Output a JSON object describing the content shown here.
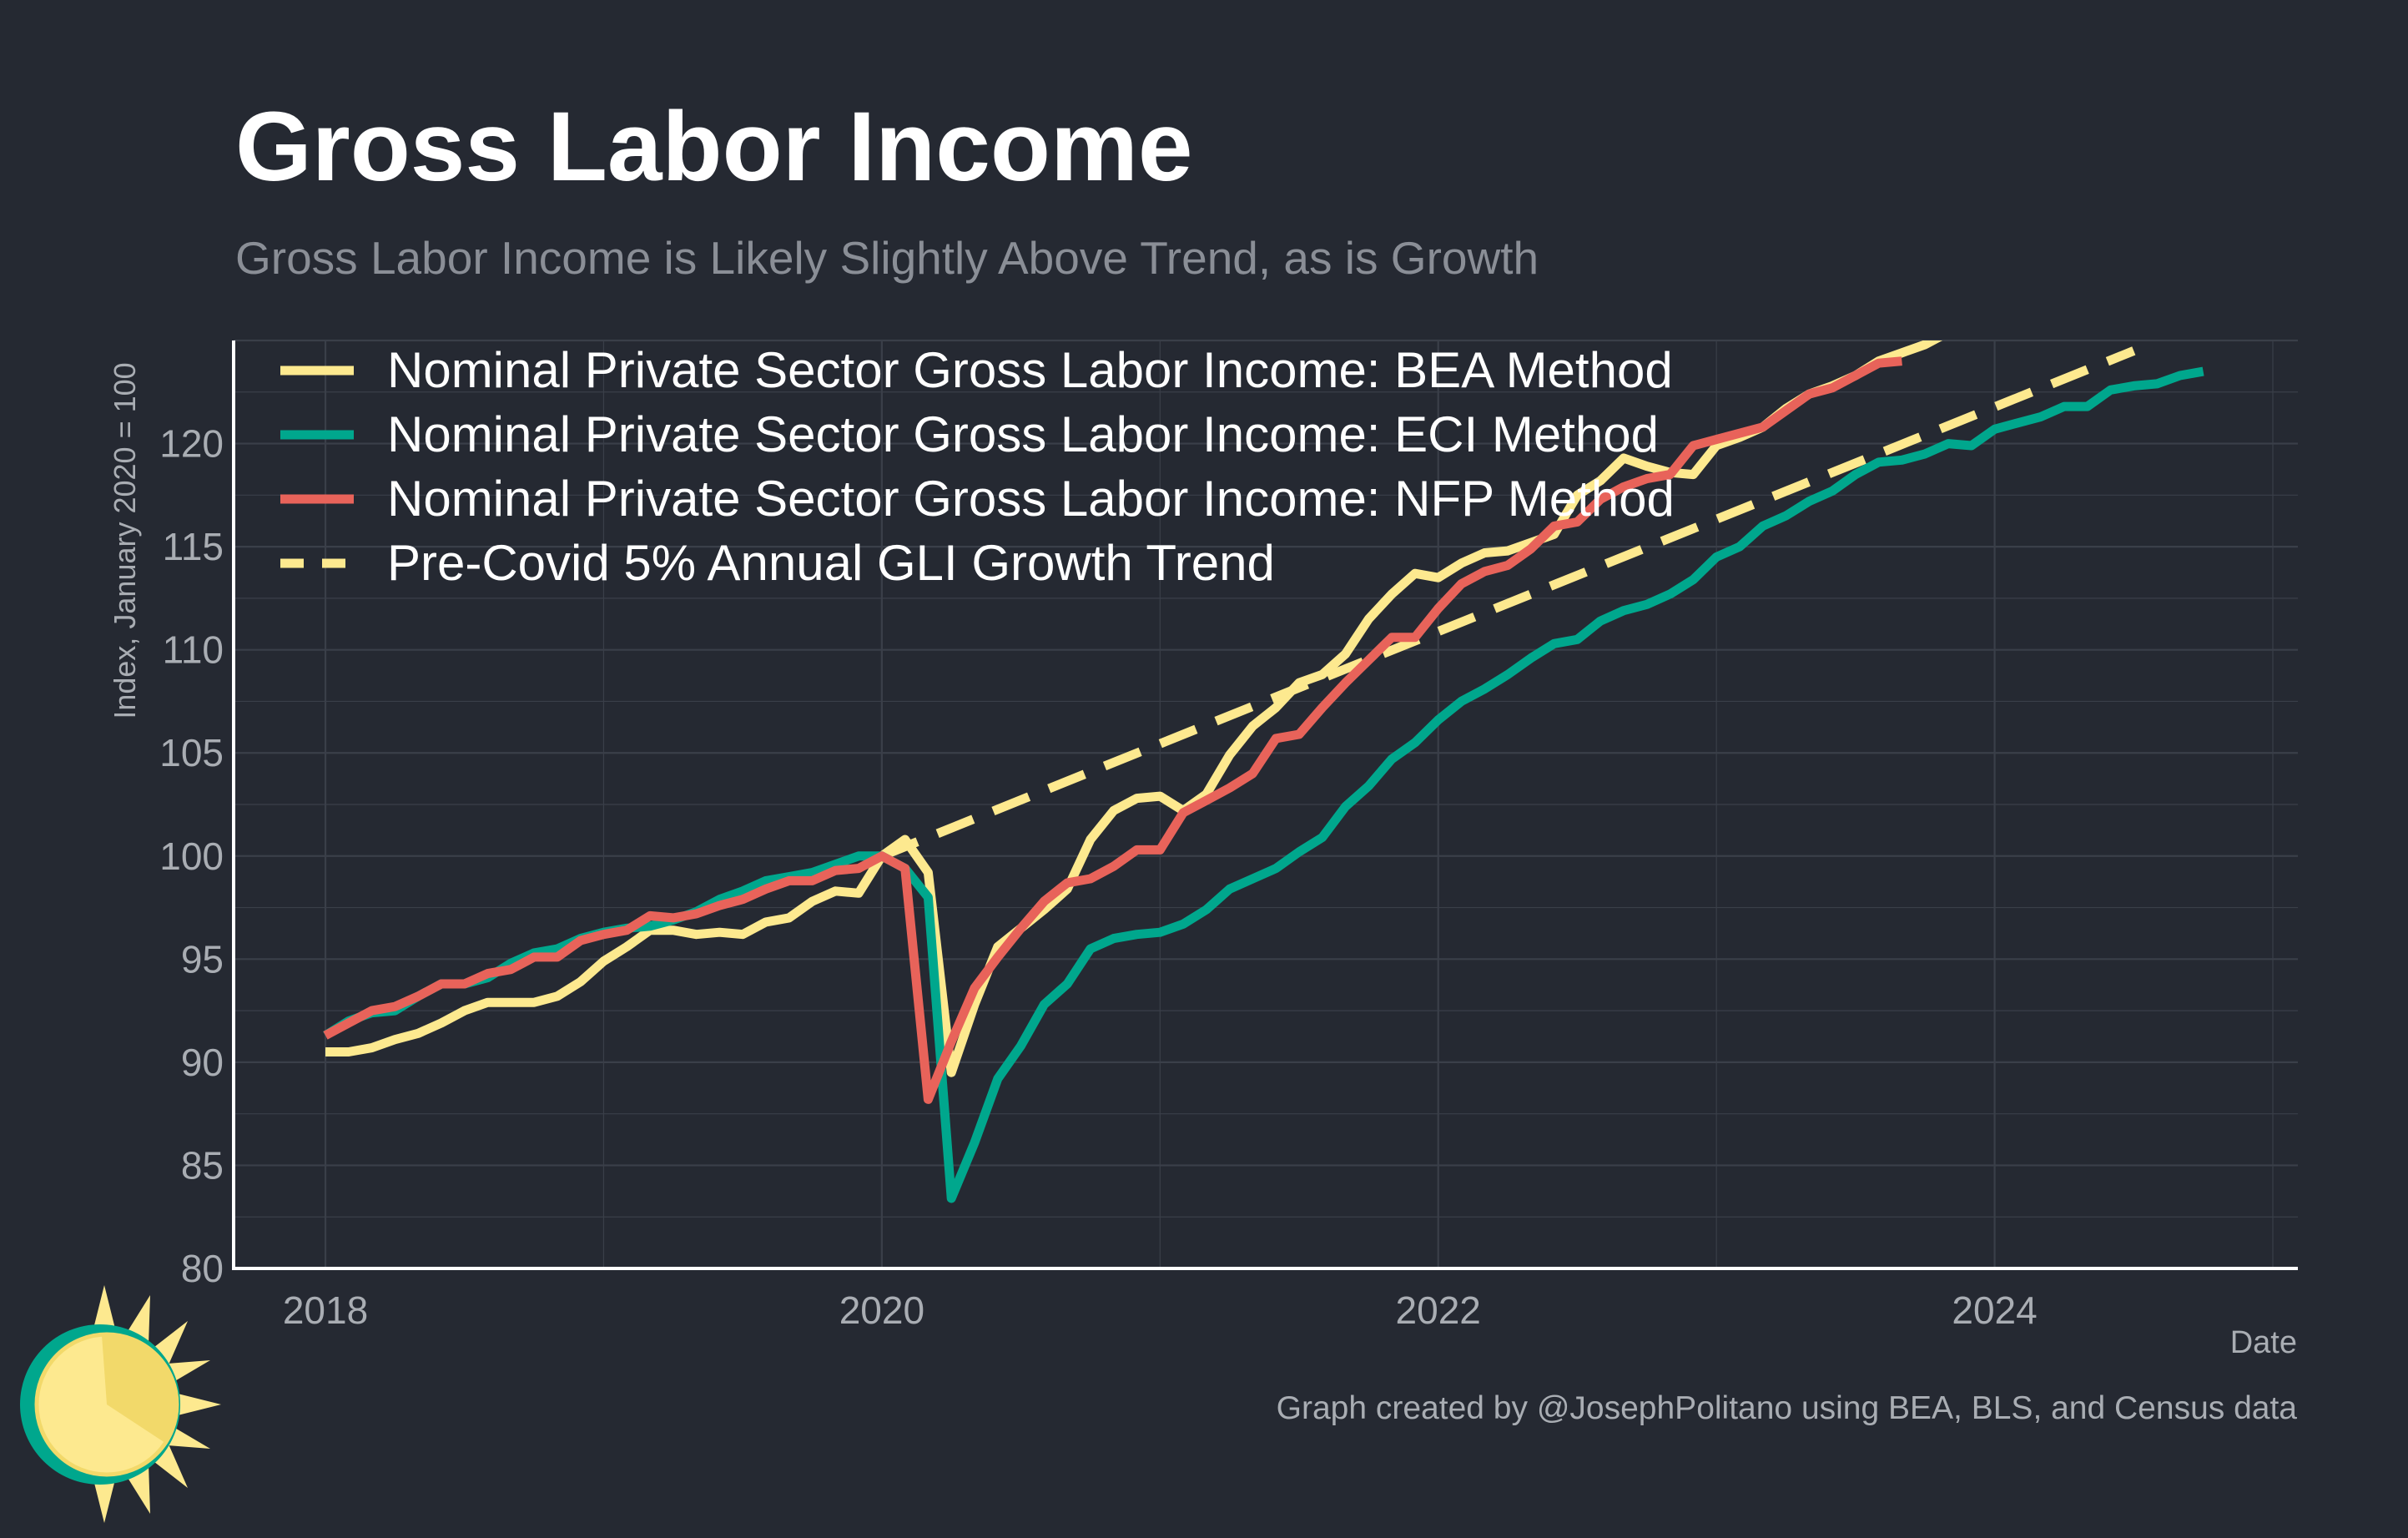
{
  "chart_data": {
    "type": "line",
    "title": "Gross Labor Income",
    "subtitle": "Gross Labor Income is Likely Slightly Above Trend, as is Growth",
    "xlabel": "Date",
    "ylabel": "Index, January 2020 = 100",
    "caption": "Graph created by @JosephPolitano using BEA, BLS, and Census data",
    "xlim": [
      2017.67,
      2025.09
    ],
    "ylim": [
      80,
      125
    ],
    "x_ticks": [
      2018,
      2020,
      2022,
      2024
    ],
    "x_tick_labels": [
      "2018",
      "2020",
      "2022",
      "2024"
    ],
    "y_ticks": [
      80,
      85,
      90,
      95,
      100,
      105,
      110,
      115,
      120
    ],
    "y_tick_labels": [
      "80",
      "85",
      "90",
      "95",
      "100",
      "105",
      "110",
      "115",
      "120"
    ],
    "grid": true,
    "legend_position": "top-left",
    "colors": {
      "background": "#252932",
      "grid": "#3a3f49",
      "axis": "#ffffff",
      "bea": "#fde98f",
      "eci": "#00a78d",
      "nfp": "#e8635a",
      "trend": "#fde98f"
    },
    "series": [
      {
        "name": "Nominal Private Sector Gross Labor Income: BEA Method",
        "color": "#fde98f",
        "style": "solid",
        "x_start": 2018.0,
        "x_step": 0.083333,
        "values": [
          90.5,
          90.5,
          90.7,
          91.1,
          91.4,
          91.9,
          92.5,
          92.9,
          92.9,
          92.9,
          93.2,
          93.9,
          94.9,
          95.6,
          96.4,
          96.4,
          96.2,
          96.3,
          96.2,
          96.8,
          97.0,
          97.8,
          98.3,
          98.2,
          100.0,
          100.8,
          99.2,
          89.5,
          92.8,
          95.6,
          96.5,
          97.4,
          98.4,
          100.8,
          102.2,
          102.8,
          102.9,
          102.2,
          103.0,
          104.9,
          106.3,
          107.2,
          108.4,
          108.8,
          109.8,
          111.5,
          112.7,
          113.7,
          113.5,
          114.2,
          114.7,
          114.8,
          115.2,
          115.6,
          117.5,
          118.2,
          119.3,
          118.9,
          118.6,
          118.5,
          119.9,
          120.3,
          120.8,
          121.7,
          122.4,
          122.8,
          123.3,
          124.0,
          124.4,
          124.8,
          125.4
        ]
      },
      {
        "name": "Nominal Private Sector Gross Labor Income: ECI Method",
        "color": "#00a78d",
        "style": "solid",
        "x_start": 2018.0,
        "x_step": 0.083333,
        "values": [
          91.3,
          92.0,
          92.4,
          92.5,
          93.2,
          93.8,
          93.8,
          94.1,
          94.8,
          95.3,
          95.5,
          96.0,
          96.3,
          96.5,
          96.6,
          96.9,
          97.3,
          97.9,
          98.3,
          98.8,
          99.0,
          99.2,
          99.6,
          100.0,
          100.0,
          99.4,
          98.0,
          83.4,
          86.1,
          89.2,
          90.8,
          92.8,
          93.8,
          95.5,
          96.0,
          96.2,
          96.3,
          96.7,
          97.4,
          98.4,
          98.9,
          99.4,
          100.2,
          100.9,
          102.4,
          103.4,
          104.7,
          105.5,
          106.6,
          107.5,
          108.1,
          108.8,
          109.6,
          110.3,
          110.5,
          111.4,
          111.9,
          112.2,
          112.7,
          113.4,
          114.5,
          115.0,
          116.0,
          116.5,
          117.2,
          117.7,
          118.5,
          119.1,
          119.2,
          119.5,
          120.0,
          119.9,
          120.7,
          121.0,
          121.3,
          121.8,
          121.8,
          122.6,
          122.8,
          122.9,
          123.3,
          123.5
        ]
      },
      {
        "name": "Nominal Private Sector Gross Labor Income: NFP Method",
        "color": "#e8635a",
        "style": "solid",
        "x_start": 2018.0,
        "x_step": 0.083333,
        "values": [
          91.3,
          91.9,
          92.5,
          92.7,
          93.2,
          93.8,
          93.8,
          94.3,
          94.5,
          95.1,
          95.1,
          95.9,
          96.2,
          96.4,
          97.1,
          97.0,
          97.2,
          97.6,
          97.9,
          98.4,
          98.8,
          98.8,
          99.3,
          99.4,
          100.0,
          99.4,
          88.2,
          91.0,
          93.6,
          95.1,
          96.5,
          97.8,
          98.7,
          98.9,
          99.5,
          100.3,
          100.3,
          102.1,
          102.7,
          103.3,
          104.0,
          105.7,
          105.9,
          107.2,
          108.4,
          109.5,
          110.6,
          110.6,
          112.0,
          113.2,
          113.8,
          114.1,
          114.9,
          116.0,
          116.2,
          117.3,
          117.9,
          118.3,
          118.5,
          119.9,
          120.2,
          120.5,
          120.8,
          121.6,
          122.4,
          122.7,
          123.3,
          123.9,
          124.0
        ]
      },
      {
        "name": "Pre-Covid 5% Annual GLI Growth Trend",
        "color": "#fde98f",
        "style": "dashed",
        "x": [
          2020.0,
          2024.5
        ],
        "values": [
          100.0,
          124.5
        ]
      }
    ]
  }
}
